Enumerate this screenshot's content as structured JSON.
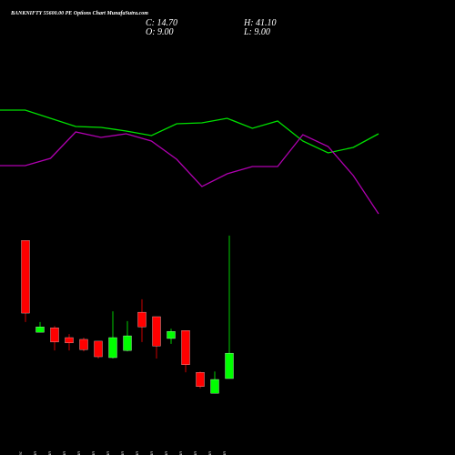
{
  "header": {
    "title": "BANKNIFTY 55600.00 PE Options Chart MunafaSutra.com",
    "close": "C: 14.70",
    "high": "H: 41.10",
    "open": "O: 9.00",
    "low": "L: 9.00"
  },
  "chart_data": [
    {
      "type": "line",
      "x": [
        0,
        1,
        2,
        3,
        4,
        5,
        6,
        7,
        8,
        9,
        10,
        11,
        12,
        13,
        14,
        15
      ],
      "xlim": [
        0,
        15
      ],
      "ylim": [
        0,
        250
      ],
      "series": [
        {
          "color": "#00e000",
          "values": [
            129,
            129,
            120,
            111,
            110,
            106,
            101,
            114,
            115,
            120,
            109,
            117,
            95,
            82,
            88,
            103
          ]
        },
        {
          "color": "#b000b0",
          "values": [
            68,
            68,
            76,
            105,
            99,
            103,
            95,
            75,
            45,
            59,
            67,
            67,
            102,
            89,
            57,
            15
          ]
        }
      ]
    },
    {
      "type": "candlestick",
      "categories": [
        "31 Dec",
        "01 Jan",
        "02 Jan",
        "05 Jan",
        "06 Jan",
        "07 Jan",
        "08 Jan",
        "09 Jan",
        "12 Jan",
        "13 Jan",
        "14 Jan",
        "16 Jan",
        "19 Jan",
        "20 Jan",
        "21 Jan"
      ],
      "open": [
        40.0,
        19.4,
        20.4,
        18.2,
        17.8,
        17.4,
        13.7,
        15.3,
        23.9,
        22.9,
        18.0,
        19.8,
        10.4,
        5.7,
        9.0
      ],
      "high": [
        40.0,
        21.7,
        20.8,
        19.0,
        18.2,
        17.4,
        24.1,
        21.9,
        26.8,
        22.9,
        20.2,
        19.8,
        10.6,
        10.6,
        41.1
      ],
      "low": [
        21.7,
        19.4,
        15.3,
        15.3,
        15.1,
        13.5,
        13.5,
        15.1,
        17.2,
        13.5,
        16.8,
        10.4,
        6.8,
        5.7,
        9.0
      ],
      "close": [
        23.7,
        20.6,
        17.2,
        17.0,
        15.5,
        13.9,
        18.2,
        18.6,
        20.6,
        16.3,
        19.6,
        12.1,
        7.2,
        8.8,
        14.7
      ],
      "up_color": "#00ff00",
      "down_color": "#ff0000",
      "ylim": [
        4.1,
        41.9
      ]
    }
  ]
}
